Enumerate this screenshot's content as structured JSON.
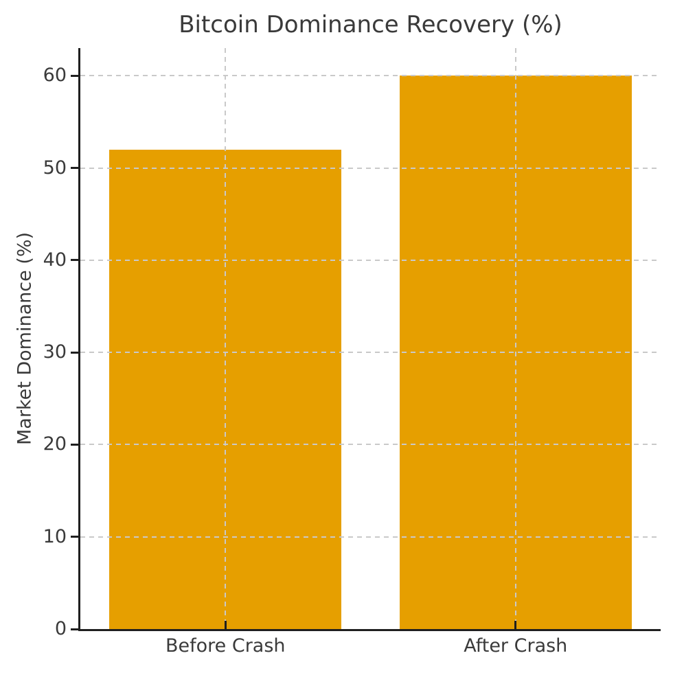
{
  "chart_data": {
    "type": "bar",
    "title": "Bitcoin Dominance Recovery (%)",
    "xlabel": "",
    "ylabel": "Market Dominance (%)",
    "categories": [
      "Before Crash",
      "After Crash"
    ],
    "values": [
      52,
      60
    ],
    "yticks": [
      0,
      10,
      20,
      30,
      40,
      50,
      60
    ],
    "ylim": [
      0,
      63
    ],
    "bar_color": "#E69F00",
    "bar_width_fraction": 0.8,
    "grid": true,
    "grid_line_style": "dashed",
    "grid_color": "#c9c9c9",
    "grid_above_bars": true,
    "axis_color": "#1f1f1f",
    "text_color": "#3a3a3a",
    "legend": null
  }
}
